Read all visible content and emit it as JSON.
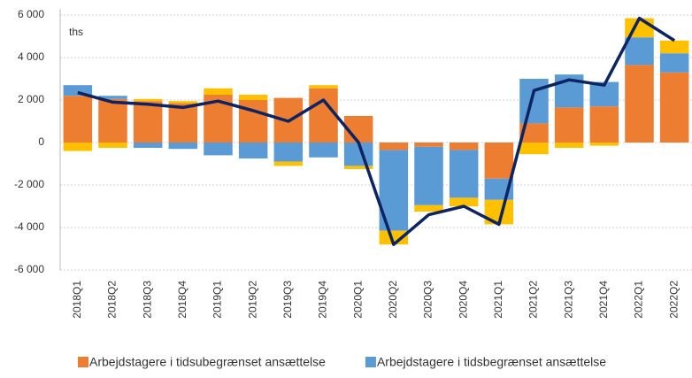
{
  "chart_data": {
    "type": "bar",
    "stacked": true,
    "annotation": "ths",
    "categories": [
      "2018Q1",
      "2018Q2",
      "2018Q3",
      "2018Q4",
      "2019Q1",
      "2019Q2",
      "2019Q3",
      "2019Q4",
      "2020Q1",
      "2020Q2",
      "2020Q3",
      "2020Q4",
      "2021Q1",
      "2021Q2",
      "2021Q3",
      "2021Q4",
      "2022Q1",
      "2022Q2"
    ],
    "series": [
      {
        "name": "Arbejdstagere i tidsubegrænset ansættelse",
        "color": "#ed7d31",
        "values": [
          2200,
          2050,
          1950,
          1850,
          2250,
          2000,
          2100,
          2550,
          1250,
          -350,
          -200,
          -350,
          -1700,
          900,
          1650,
          1700,
          3650,
          3300
        ]
      },
      {
        "name": "Arbejdstagere i tidsbegrænset ansættelse",
        "color": "#5b9bd5",
        "values": [
          500,
          150,
          -250,
          -300,
          -600,
          -750,
          -900,
          -700,
          -1100,
          -3800,
          -2750,
          -2250,
          -1000,
          2100,
          1550,
          1150,
          1300,
          900
        ]
      },
      {
        "color": "#ffc000",
        "values": [
          -400,
          -250,
          100,
          100,
          300,
          250,
          -200,
          150,
          -150,
          -650,
          -300,
          -400,
          -1150,
          -550,
          -250,
          -150,
          900,
          600
        ]
      },
      {
        "type": "line",
        "color": "#0c2461",
        "values": [
          2350,
          1900,
          1800,
          1650,
          1950,
          1500,
          1000,
          2000,
          0,
          -4800,
          -3400,
          -3000,
          -3850,
          2450,
          2950,
          2700,
          5850,
          4800
        ]
      }
    ],
    "ylim": [
      -6000,
      6000
    ],
    "yticks": [
      {
        "value": -6000,
        "label": "-6 000"
      },
      {
        "value": -4000,
        "label": "-4 000"
      },
      {
        "value": -2000,
        "label": "-2 000"
      },
      0,
      {
        "value": 2000,
        "label": "2 000"
      },
      {
        "value": 4000,
        "label": "4 000"
      },
      {
        "value": 6000,
        "label": "6 000"
      }
    ],
    "grid": true
  }
}
